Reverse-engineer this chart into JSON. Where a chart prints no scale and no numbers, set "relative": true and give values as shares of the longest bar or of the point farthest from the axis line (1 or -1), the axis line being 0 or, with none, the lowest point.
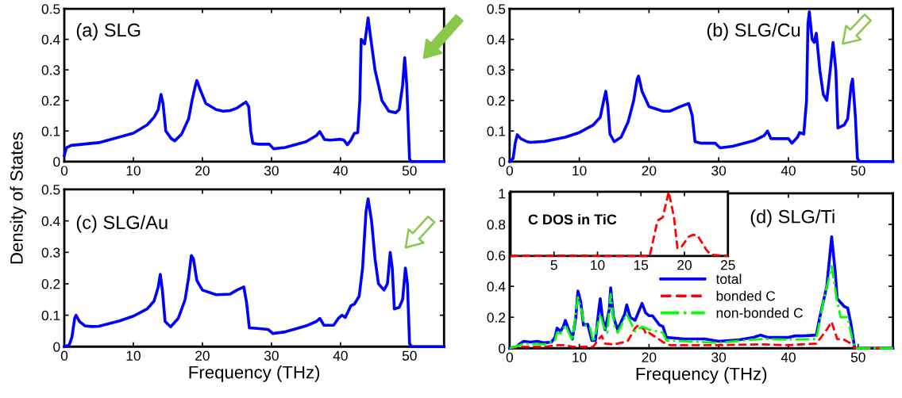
{
  "chart_data": [
    {
      "type": "line",
      "ylabel": "Density of States",
      "annotations": [
        "(a) SLG"
      ],
      "xlim": [
        0,
        55
      ],
      "xticks": [
        0,
        10,
        20,
        30,
        40,
        50
      ],
      "ylim": [
        0,
        0.5
      ],
      "yticks": [
        0,
        0.1,
        0.2,
        0.3,
        0.4,
        0.5
      ],
      "series": [
        {
          "color": "#0000ff",
          "x": [
            0,
            0.3,
            1,
            5,
            10,
            12,
            13,
            13.6,
            14,
            14.3,
            14.7,
            15.5,
            16,
            17,
            18,
            18.5,
            19,
            19.2,
            19.6,
            20.5,
            22,
            23,
            24,
            25,
            26.3,
            26.7,
            27,
            27.3,
            28,
            29.7,
            30.3,
            32,
            35,
            36.5,
            37,
            37.7,
            38.5,
            40,
            40.5,
            41,
            41.5,
            42,
            42.5,
            42.8,
            43,
            43.5,
            44,
            44.4,
            45,
            46,
            47,
            48,
            48.5,
            49,
            49.3,
            49.6,
            50,
            50.2,
            55
          ],
          "values": [
            0.02,
            0.045,
            0.053,
            0.062,
            0.093,
            0.12,
            0.145,
            0.17,
            0.22,
            0.19,
            0.1,
            0.075,
            0.068,
            0.09,
            0.14,
            0.2,
            0.25,
            0.265,
            0.24,
            0.19,
            0.17,
            0.165,
            0.167,
            0.175,
            0.195,
            0.18,
            0.1,
            0.06,
            0.057,
            0.057,
            0.042,
            0.046,
            0.065,
            0.085,
            0.098,
            0.072,
            0.07,
            0.073,
            0.07,
            0.055,
            0.07,
            0.092,
            0.095,
            0.2,
            0.4,
            0.385,
            0.47,
            0.4,
            0.3,
            0.2,
            0.165,
            0.16,
            0.17,
            0.25,
            0.34,
            0.25,
            0.01,
            0,
            0
          ]
        }
      ]
    },
    {
      "type": "line",
      "annotations": [
        "(b) SLG/Cu"
      ],
      "xlim": [
        0,
        55
      ],
      "xticks": [
        0,
        10,
        20,
        30,
        40,
        50
      ],
      "ylim": [
        0,
        0.5
      ],
      "yticks": [
        0,
        0.1,
        0.2,
        0.3,
        0.4,
        0.5
      ],
      "series": [
        {
          "color": "#0000ff",
          "x": [
            0,
            0.5,
            0.8,
            1.1,
            1.6,
            2.5,
            3,
            5,
            8,
            10,
            12,
            13,
            13.5,
            13.8,
            14.1,
            14.4,
            15,
            16,
            17,
            17.8,
            18.3,
            18.5,
            19,
            20,
            22,
            23,
            24.5,
            25.7,
            26.2,
            26.6,
            27.5,
            29.5,
            30.2,
            32,
            35,
            36.5,
            37,
            37.5,
            38,
            40,
            40.5,
            41.3,
            41.6,
            42.2,
            42.6,
            42.8,
            43,
            43.4,
            43.7,
            44,
            44.5,
            45,
            45.5,
            46,
            46.4,
            46.8,
            47.1,
            48,
            48.5,
            49,
            49.2,
            49.6,
            49.9,
            50.2,
            55
          ],
          "values": [
            0,
            0.01,
            0.06,
            0.088,
            0.075,
            0.065,
            0.063,
            0.066,
            0.08,
            0.095,
            0.12,
            0.145,
            0.2,
            0.23,
            0.18,
            0.09,
            0.065,
            0.08,
            0.13,
            0.2,
            0.27,
            0.28,
            0.23,
            0.18,
            0.165,
            0.165,
            0.18,
            0.19,
            0.15,
            0.065,
            0.06,
            0.06,
            0.045,
            0.05,
            0.068,
            0.085,
            0.1,
            0.075,
            0.075,
            0.075,
            0.06,
            0.08,
            0.095,
            0.09,
            0.2,
            0.45,
            0.49,
            0.4,
            0.39,
            0.42,
            0.3,
            0.22,
            0.2,
            0.3,
            0.39,
            0.3,
            0.11,
            0.12,
            0.14,
            0.25,
            0.27,
            0.15,
            0.01,
            0,
            0
          ]
        }
      ]
    },
    {
      "type": "line",
      "xlabel": "Frequency (THz)",
      "annotations": [
        "(c) SLG/Au"
      ],
      "xlim": [
        0,
        55
      ],
      "xticks": [
        0,
        10,
        20,
        30,
        40,
        50
      ],
      "ylim": [
        0,
        0.5
      ],
      "yticks": [
        0,
        0.1,
        0.2,
        0.3,
        0.4,
        0.5
      ],
      "series": [
        {
          "color": "#0000ff",
          "x": [
            0,
            0.7,
            1.1,
            1.5,
            1.7,
            2.2,
            3,
            4,
            5,
            8,
            10,
            12,
            13,
            13.6,
            13.9,
            14.2,
            14.6,
            15.4,
            16.5,
            17.5,
            18,
            18.4,
            18.7,
            19.2,
            20,
            22,
            24,
            25,
            26,
            26.4,
            26.8,
            28,
            29.5,
            30.2,
            32,
            35,
            36.5,
            37,
            37.6,
            39,
            39.7,
            40.2,
            40.7,
            41.5,
            42,
            42.7,
            43.2,
            43.7,
            44,
            44.5,
            45,
            45.5,
            46.3,
            46.8,
            47.2,
            47.5,
            47.8,
            48.5,
            49,
            49.4,
            49.7,
            50,
            50.3,
            55
          ],
          "values": [
            0,
            0.005,
            0.03,
            0.09,
            0.1,
            0.08,
            0.066,
            0.064,
            0.065,
            0.082,
            0.097,
            0.12,
            0.145,
            0.19,
            0.23,
            0.18,
            0.08,
            0.063,
            0.09,
            0.15,
            0.22,
            0.29,
            0.28,
            0.21,
            0.18,
            0.165,
            0.167,
            0.18,
            0.19,
            0.14,
            0.06,
            0.058,
            0.055,
            0.042,
            0.047,
            0.066,
            0.08,
            0.09,
            0.068,
            0.068,
            0.09,
            0.1,
            0.093,
            0.13,
            0.135,
            0.16,
            0.25,
            0.43,
            0.47,
            0.4,
            0.28,
            0.2,
            0.18,
            0.2,
            0.3,
            0.25,
            0.12,
            0.125,
            0.15,
            0.25,
            0.2,
            0.01,
            0,
            0
          ]
        }
      ]
    },
    {
      "type": "line",
      "xlabel": "Frequency (THz)",
      "annotations": [
        "(d) SLG/Ti"
      ],
      "legend": "center",
      "xlim": [
        0,
        55
      ],
      "xticks": [
        0,
        10,
        20,
        30,
        40,
        50
      ],
      "ylim": [
        0,
        1
      ],
      "yticks": [
        0,
        0.2,
        0.4,
        0.6,
        0.8,
        1
      ],
      "series": [
        {
          "name": "total",
          "color": "#0000ff",
          "line_style": "solid",
          "x": [
            0,
            1,
            1.5,
            2,
            3,
            4,
            5,
            6,
            6.5,
            6.8,
            7.3,
            7.7,
            8,
            8.4,
            9,
            9.5,
            9.8,
            10.2,
            10.6,
            11.2,
            11.8,
            12.3,
            12.8,
            13,
            13.3,
            13.7,
            14.3,
            14.5,
            14.9,
            15.5,
            16.5,
            16.8,
            17.3,
            18,
            19,
            19.5,
            20,
            20.5,
            21.5,
            22,
            22.5,
            25,
            28,
            30,
            33,
            35,
            36,
            37,
            40,
            41,
            42,
            44,
            44.5,
            45.5,
            46.2,
            46.7,
            47,
            48,
            48.5,
            49,
            49.5,
            55
          ],
          "values": [
            0,
            0.01,
            0.03,
            0.045,
            0.04,
            0.045,
            0.035,
            0.04,
            0.07,
            0.13,
            0.11,
            0.14,
            0.18,
            0.13,
            0.06,
            0.2,
            0.37,
            0.3,
            0.15,
            0.155,
            0.05,
            0.05,
            0.25,
            0.32,
            0.2,
            0.12,
            0.25,
            0.39,
            0.2,
            0.12,
            0.22,
            0.28,
            0.2,
            0.18,
            0.29,
            0.23,
            0.21,
            0.21,
            0.15,
            0.14,
            0.07,
            0.06,
            0.06,
            0.045,
            0.055,
            0.07,
            0.085,
            0.07,
            0.07,
            0.08,
            0.08,
            0.085,
            0.2,
            0.4,
            0.72,
            0.5,
            0.32,
            0.27,
            0.26,
            0.15,
            0,
            0
          ]
        },
        {
          "name": "bonded C",
          "color": "#ff0000",
          "line_style": "dashed",
          "x": [
            0,
            1.5,
            5,
            7,
            8,
            9,
            12,
            12.8,
            13.2,
            13.7,
            15,
            16.5,
            17,
            18,
            18.5,
            19.3,
            19.6,
            20,
            21,
            22,
            23,
            30,
            36,
            40,
            44,
            45.5,
            46.2,
            46.7,
            47,
            48,
            49,
            49.5,
            55
          ],
          "values": [
            0,
            0.01,
            0.01,
            0.02,
            0.02,
            0.01,
            0.01,
            0.06,
            0.08,
            0.03,
            0.025,
            0.04,
            0.05,
            0.13,
            0.15,
            0.12,
            0.09,
            0.1,
            0.07,
            0.04,
            0.02,
            0.02,
            0.025,
            0.02,
            0.03,
            0.12,
            0.17,
            0.1,
            0.06,
            0.055,
            0.03,
            0,
            0
          ]
        },
        {
          "name": "non-bonded C",
          "color": "#00ff00",
          "line_style": "dashdot",
          "x": [
            0,
            1.5,
            2,
            5,
            6.5,
            6.8,
            7.3,
            8,
            8.5,
            9,
            9.8,
            10.3,
            10.7,
            11.5,
            12,
            13,
            13.5,
            14,
            14.5,
            15,
            15.5,
            16.8,
            18,
            19,
            20,
            22,
            22.5,
            30,
            36,
            40,
            44,
            45,
            46.2,
            47,
            47.5,
            48.5,
            49.2,
            49.6,
            55
          ],
          "values": [
            0,
            0.02,
            0.03,
            0.025,
            0.05,
            0.1,
            0.095,
            0.15,
            0.1,
            0.05,
            0.33,
            0.25,
            0.15,
            0.14,
            0.04,
            0.22,
            0.14,
            0.1,
            0.35,
            0.15,
            0.1,
            0.22,
            0.11,
            0.14,
            0.12,
            0.1,
            0.05,
            0.035,
            0.06,
            0.055,
            0.06,
            0.3,
            0.53,
            0.3,
            0.2,
            0.2,
            0.05,
            0,
            0
          ]
        }
      ]
    },
    {
      "type": "line",
      "relative": true,
      "annotations": [
        "C DOS in TiC"
      ],
      "tick_labels": "x",
      "xlim": [
        0,
        25
      ],
      "xticks": [
        5,
        10,
        15,
        20,
        25
      ],
      "series": [
        {
          "color": "#ff0000",
          "line_style": "dashed",
          "x": [
            0,
            6,
            9,
            10,
            16,
            16.5,
            16.9,
            17.5,
            18.2,
            18.8,
            19.2,
            19.7,
            20.5,
            21,
            21.5,
            22.5,
            23,
            25
          ],
          "values": [
            0,
            0.005,
            0.005,
            0,
            0,
            0.3,
            0.55,
            0.6,
            1,
            0.6,
            0.12,
            0.15,
            0.3,
            0.33,
            0.32,
            0.1,
            0.02,
            0
          ]
        }
      ]
    }
  ]
}
